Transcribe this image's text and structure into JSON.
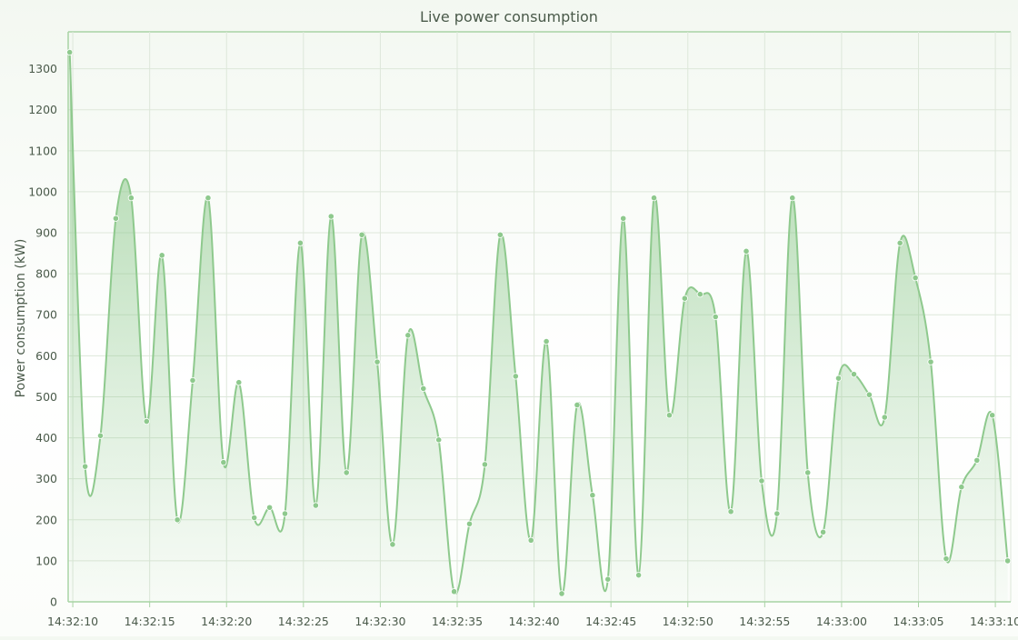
{
  "chart_data": {
    "type": "area",
    "title": "Live power consumption",
    "xlabel": "",
    "ylabel": "Power consumption (kW)",
    "ylim": [
      0,
      1390
    ],
    "y_ticks": [
      0,
      100,
      200,
      300,
      400,
      500,
      600,
      700,
      800,
      900,
      1000,
      1100,
      1200,
      1300
    ],
    "x_start": "14:32:09.7",
    "x_end": "14:33:11",
    "x_tick_labels": [
      "14:32:10",
      "14:32:15",
      "14:32:20",
      "14:32:25",
      "14:32:30",
      "14:32:35",
      "14:32:40",
      "14:32:45",
      "14:32:50",
      "14:32:55",
      "14:33:00",
      "14:33:05",
      "14:33:10"
    ],
    "grid": true,
    "colors": {
      "line": "#8ec98d",
      "fill": "#8ec98d",
      "grid": "#dde7da",
      "axis": "#a8d3a4",
      "text": "#4a5a4a"
    },
    "x": [
      "14:32:09.8",
      "14:32:10.8",
      "14:32:11.8",
      "14:32:12.8",
      "14:32:13.8",
      "14:32:14.8",
      "14:32:15.8",
      "14:32:16.8",
      "14:32:17.8",
      "14:32:18.8",
      "14:32:19.8",
      "14:32:20.8",
      "14:32:21.8",
      "14:32:22.8",
      "14:32:23.8",
      "14:32:24.8",
      "14:32:25.8",
      "14:32:26.8",
      "14:32:27.8",
      "14:32:28.8",
      "14:32:29.8",
      "14:32:30.8",
      "14:32:31.8",
      "14:32:32.8",
      "14:32:33.8",
      "14:32:34.8",
      "14:32:35.8",
      "14:32:36.8",
      "14:32:37.8",
      "14:32:38.8",
      "14:32:39.8",
      "14:32:40.8",
      "14:32:41.8",
      "14:32:42.8",
      "14:32:43.8",
      "14:32:44.8",
      "14:32:45.8",
      "14:32:46.8",
      "14:32:47.8",
      "14:32:48.8",
      "14:32:49.8",
      "14:32:50.8",
      "14:32:51.8",
      "14:32:52.8",
      "14:32:53.8",
      "14:32:54.8",
      "14:32:55.8",
      "14:32:56.8",
      "14:32:57.8",
      "14:32:58.8",
      "14:32:59.8",
      "14:33:00.8",
      "14:33:01.8",
      "14:33:02.8",
      "14:33:03.8",
      "14:33:04.8",
      "14:33:05.8",
      "14:33:06.8",
      "14:33:07.8",
      "14:33:08.8",
      "14:33:09.8",
      "14:33:10.8"
    ],
    "values": [
      1340,
      330,
      405,
      935,
      985,
      440,
      845,
      200,
      540,
      985,
      340,
      535,
      205,
      230,
      215,
      875,
      235,
      940,
      315,
      895,
      585,
      140,
      650,
      520,
      395,
      25,
      190,
      335,
      895,
      550,
      150,
      635,
      20,
      480,
      260,
      55,
      935,
      65,
      985,
      455,
      740,
      750,
      695,
      220,
      855,
      295,
      215,
      985,
      315,
      170,
      545,
      555,
      505,
      450,
      875,
      790,
      585,
      105,
      280,
      345,
      455,
      100
    ]
  }
}
